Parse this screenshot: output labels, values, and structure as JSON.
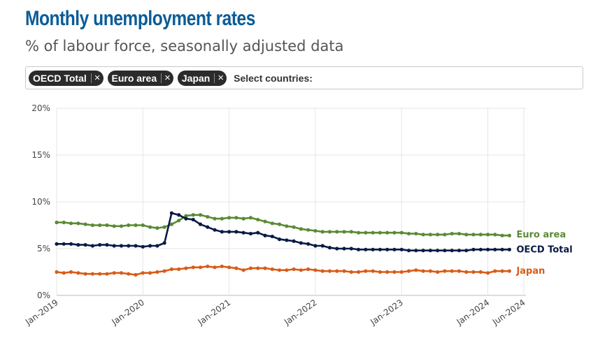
{
  "header": {
    "title": "Monthly unemployment rates",
    "subtitle": "% of labour force, seasonally adjusted data"
  },
  "selector": {
    "chips": [
      "OECD Total",
      "Euro area",
      "Japan"
    ],
    "remove_symbol": "×",
    "placeholder": "Select countries:"
  },
  "chart_data": {
    "type": "line",
    "title": "Monthly unemployment rates",
    "subtitle": "% of labour force, seasonally adjusted data",
    "xlabel": "",
    "ylabel": "",
    "x_start": "2019-01",
    "x_end": "2024-06",
    "xticks": [
      "Jan-2019",
      "Jan-2020",
      "Jan-2021",
      "Jan-2022",
      "Jan-2023",
      "Jan-2024",
      "Jun-2024"
    ],
    "yticks": [
      "0%",
      "5%",
      "10%",
      "15%",
      "20%"
    ],
    "ylim": [
      0,
      20
    ],
    "grid": true,
    "legend": "right-end labels",
    "series": [
      {
        "name": "Euro area",
        "color": "#5a8a34",
        "values": [
          7.8,
          7.8,
          7.7,
          7.7,
          7.6,
          7.5,
          7.5,
          7.5,
          7.4,
          7.4,
          7.5,
          7.5,
          7.5,
          7.3,
          7.2,
          7.3,
          7.6,
          8.0,
          8.5,
          8.6,
          8.6,
          8.4,
          8.2,
          8.2,
          8.3,
          8.3,
          8.2,
          8.3,
          8.1,
          7.9,
          7.7,
          7.6,
          7.4,
          7.3,
          7.1,
          7.0,
          6.9,
          6.8,
          6.8,
          6.8,
          6.8,
          6.8,
          6.7,
          6.7,
          6.7,
          6.7,
          6.7,
          6.7,
          6.7,
          6.6,
          6.6,
          6.5,
          6.5,
          6.5,
          6.5,
          6.6,
          6.6,
          6.5,
          6.5,
          6.5,
          6.5,
          6.5,
          6.4,
          6.4
        ]
      },
      {
        "name": "OECD Total",
        "color": "#0a1a44",
        "values": [
          5.5,
          5.5,
          5.5,
          5.4,
          5.4,
          5.3,
          5.4,
          5.4,
          5.3,
          5.3,
          5.3,
          5.3,
          5.2,
          5.3,
          5.3,
          5.6,
          8.8,
          8.6,
          8.2,
          8.1,
          7.6,
          7.3,
          7.0,
          6.8,
          6.8,
          6.8,
          6.7,
          6.6,
          6.7,
          6.4,
          6.3,
          6.0,
          5.9,
          5.8,
          5.6,
          5.5,
          5.3,
          5.3,
          5.1,
          5.0,
          5.0,
          5.0,
          4.9,
          4.9,
          4.9,
          4.9,
          4.9,
          4.9,
          4.9,
          4.8,
          4.8,
          4.8,
          4.8,
          4.8,
          4.8,
          4.8,
          4.8,
          4.8,
          4.9,
          4.9,
          4.9,
          4.9,
          4.9,
          4.9
        ]
      },
      {
        "name": "Japan",
        "color": "#d85c17",
        "values": [
          2.5,
          2.4,
          2.5,
          2.4,
          2.3,
          2.3,
          2.3,
          2.3,
          2.4,
          2.4,
          2.3,
          2.2,
          2.4,
          2.4,
          2.5,
          2.6,
          2.8,
          2.8,
          2.9,
          3.0,
          3.0,
          3.1,
          3.0,
          3.1,
          3.0,
          2.9,
          2.7,
          2.9,
          2.9,
          2.9,
          2.8,
          2.7,
          2.7,
          2.8,
          2.7,
          2.8,
          2.7,
          2.6,
          2.6,
          2.6,
          2.6,
          2.5,
          2.5,
          2.6,
          2.6,
          2.5,
          2.5,
          2.5,
          2.5,
          2.6,
          2.7,
          2.6,
          2.6,
          2.5,
          2.6,
          2.6,
          2.6,
          2.5,
          2.5,
          2.5,
          2.4,
          2.6,
          2.6,
          2.6
        ]
      }
    ]
  }
}
